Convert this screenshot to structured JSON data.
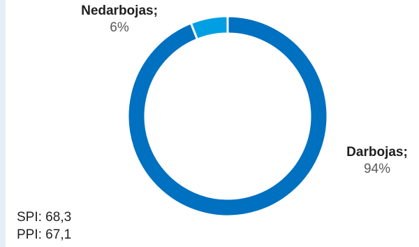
{
  "chart_data": {
    "type": "pie",
    "style": "donut",
    "slices": [
      {
        "label": "Darbojas;",
        "value": 94,
        "value_text": "94%",
        "color": "#0070c0"
      },
      {
        "label": "Nedarbojas;",
        "value": 6,
        "value_text": "6%",
        "color": "#009fe3"
      }
    ]
  },
  "notes": {
    "spi": "SPI: 68,3",
    "ppi": "PPI: 67,1"
  }
}
